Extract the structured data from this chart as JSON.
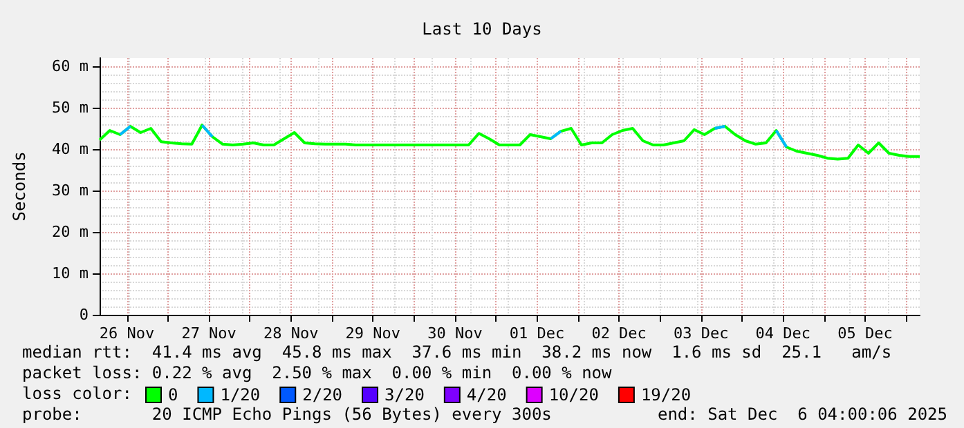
{
  "chart_data": {
    "type": "line",
    "title": "Last 10 Days",
    "ylabel": "Seconds",
    "legend_title": "loss color:",
    "x": [
      "2025-11-26T04:00",
      "2025-11-26T07:00",
      "2025-11-26T10:00",
      "2025-11-26T13:00",
      "2025-11-26T16:00",
      "2025-11-26T19:00",
      "2025-11-26T22:00",
      "2025-11-27T01:00",
      "2025-11-27T04:00",
      "2025-11-27T07:00",
      "2025-11-27T10:00",
      "2025-11-27T13:00",
      "2025-11-27T16:00",
      "2025-11-27T19:00",
      "2025-11-27T22:00",
      "2025-11-28T01:00",
      "2025-11-28T04:00",
      "2025-11-28T07:00",
      "2025-11-28T10:00",
      "2025-11-28T13:00",
      "2025-11-28T16:00",
      "2025-11-28T19:00",
      "2025-11-28T22:00",
      "2025-11-29T01:00",
      "2025-11-29T04:00",
      "2025-11-29T07:00",
      "2025-11-29T10:00",
      "2025-11-29T13:00",
      "2025-11-29T16:00",
      "2025-11-29T19:00",
      "2025-11-29T22:00",
      "2025-11-30T01:00",
      "2025-11-30T04:00",
      "2025-11-30T07:00",
      "2025-11-30T10:00",
      "2025-11-30T13:00",
      "2025-11-30T16:00",
      "2025-11-30T19:00",
      "2025-11-30T22:00",
      "2025-12-01T01:00",
      "2025-12-01T04:00",
      "2025-12-01T07:00",
      "2025-12-01T10:00",
      "2025-12-01T13:00",
      "2025-12-01T16:00",
      "2025-12-01T19:00",
      "2025-12-01T22:00",
      "2025-12-02T01:00",
      "2025-12-02T04:00",
      "2025-12-02T07:00",
      "2025-12-02T10:00",
      "2025-12-02T13:00",
      "2025-12-02T16:00",
      "2025-12-02T19:00",
      "2025-12-02T22:00",
      "2025-12-03T01:00",
      "2025-12-03T04:00",
      "2025-12-03T07:00",
      "2025-12-03T10:00",
      "2025-12-03T13:00",
      "2025-12-03T16:00",
      "2025-12-03T19:00",
      "2025-12-03T22:00",
      "2025-12-04T01:00",
      "2025-12-04T04:00",
      "2025-12-04T07:00",
      "2025-12-04T10:00",
      "2025-12-04T13:00",
      "2025-12-04T16:00",
      "2025-12-04T19:00",
      "2025-12-04T22:00",
      "2025-12-05T01:00",
      "2025-12-05T04:00",
      "2025-12-05T07:00",
      "2025-12-05T10:00",
      "2025-12-05T13:00",
      "2025-12-05T16:00",
      "2025-12-05T19:00",
      "2025-12-05T22:00",
      "2025-12-06T01:00",
      "2025-12-06T04:00"
    ],
    "series": [
      {
        "name": "0",
        "color": "#00ff00",
        "values": [
          42.2,
          44.5,
          43.5,
          45.5,
          44,
          45,
          41.8,
          41.5,
          41.3,
          41.2,
          45.8,
          43,
          41.2,
          41,
          41.2,
          41.5,
          41,
          41,
          42.5,
          44,
          41.5,
          41.3,
          41.2,
          41.2,
          41.2,
          41,
          41,
          41,
          41,
          41,
          41,
          41,
          41,
          41,
          41,
          41,
          41,
          43.8,
          42.5,
          41,
          41,
          41,
          43.5,
          43,
          42.5,
          44.3,
          45,
          41,
          41.5,
          41.5,
          43.5,
          44.5,
          45,
          42,
          41,
          41,
          41.5,
          42,
          44.7,
          43.5,
          45,
          45.5,
          43.5,
          42,
          41.2,
          41.5,
          44.5,
          40.5,
          39.5,
          39,
          38.5,
          37.8,
          37.6,
          37.8,
          41,
          39,
          41.5,
          39,
          38.5,
          38.2,
          38.2
        ]
      },
      {
        "name": "1/20",
        "color": "#00b8ff",
        "values": [
          null,
          null,
          43.5,
          45.5,
          null,
          null,
          null,
          null,
          null,
          null,
          45.8,
          43,
          null,
          null,
          null,
          null,
          null,
          null,
          null,
          null,
          null,
          null,
          null,
          null,
          null,
          null,
          null,
          null,
          null,
          null,
          null,
          null,
          null,
          null,
          null,
          null,
          null,
          null,
          null,
          null,
          null,
          null,
          null,
          null,
          42.5,
          44.3,
          null,
          null,
          null,
          null,
          null,
          null,
          null,
          null,
          null,
          null,
          null,
          null,
          null,
          null,
          45,
          45.5,
          null,
          null,
          null,
          null,
          44.5,
          40.5,
          null,
          null,
          null,
          null,
          null,
          null,
          null,
          null,
          null,
          null,
          null,
          null,
          null
        ]
      },
      {
        "name": "2/20",
        "color": "#0059ff",
        "values": [
          null,
          null,
          null,
          null,
          null,
          null,
          null,
          null,
          null,
          null,
          null,
          null,
          null,
          null,
          null,
          null,
          null,
          null,
          null,
          null,
          null,
          null,
          null,
          null,
          null,
          null,
          null,
          null,
          null,
          null,
          null,
          null,
          null,
          null,
          null,
          null,
          null,
          null,
          null,
          null,
          null,
          null,
          null,
          null,
          null,
          null,
          null,
          null,
          null,
          null,
          null,
          null,
          null,
          null,
          null,
          null,
          null,
          null,
          null,
          null,
          null,
          null,
          null,
          null,
          null,
          null,
          null,
          null,
          null,
          null,
          null,
          null,
          null,
          null,
          null,
          null,
          null,
          null,
          null,
          null,
          null
        ]
      },
      {
        "name": "3/20",
        "color": "#5500ff",
        "values": [
          null,
          null,
          null,
          null,
          null,
          null,
          null,
          null,
          null,
          null,
          null,
          null,
          null,
          null,
          null,
          null,
          null,
          null,
          null,
          null,
          null,
          null,
          null,
          null,
          null,
          null,
          null,
          null,
          null,
          null,
          null,
          null,
          null,
          null,
          null,
          null,
          null,
          null,
          null,
          null,
          null,
          null,
          null,
          null,
          null,
          null,
          null,
          null,
          null,
          null,
          null,
          null,
          null,
          null,
          null,
          null,
          null,
          null,
          null,
          null,
          null,
          null,
          null,
          null,
          null,
          null,
          null,
          null,
          null,
          null,
          null,
          null,
          null,
          null,
          null,
          null,
          null,
          null,
          null,
          null,
          null
        ]
      },
      {
        "name": "4/20",
        "color": "#7e00ff",
        "values": [
          null,
          null,
          null,
          null,
          null,
          null,
          null,
          null,
          null,
          null,
          null,
          null,
          null,
          null,
          null,
          null,
          null,
          null,
          null,
          null,
          null,
          null,
          null,
          null,
          null,
          null,
          null,
          null,
          null,
          null,
          null,
          null,
          null,
          null,
          null,
          null,
          null,
          null,
          null,
          null,
          null,
          null,
          null,
          null,
          null,
          null,
          null,
          null,
          null,
          null,
          null,
          null,
          null,
          null,
          null,
          null,
          null,
          null,
          null,
          null,
          null,
          null,
          null,
          null,
          null,
          null,
          null,
          null,
          null,
          null,
          null,
          null,
          null,
          null,
          null,
          null,
          null,
          null,
          null,
          null,
          null
        ]
      },
      {
        "name": "10/20",
        "color": "#dd00ff",
        "values": [
          null,
          null,
          null,
          null,
          null,
          null,
          null,
          null,
          null,
          null,
          null,
          null,
          null,
          null,
          null,
          null,
          null,
          null,
          null,
          null,
          null,
          null,
          null,
          null,
          null,
          null,
          null,
          null,
          null,
          null,
          null,
          null,
          null,
          null,
          null,
          null,
          null,
          null,
          null,
          null,
          null,
          null,
          null,
          null,
          null,
          null,
          null,
          null,
          null,
          null,
          null,
          null,
          null,
          null,
          null,
          null,
          null,
          null,
          null,
          null,
          null,
          null,
          null,
          null,
          null,
          null,
          null,
          null,
          null,
          null,
          null,
          null,
          null,
          null,
          null,
          null,
          null,
          null,
          null,
          null,
          null
        ]
      },
      {
        "name": "19/20",
        "color": "#ff0000",
        "values": [
          null,
          null,
          null,
          null,
          null,
          null,
          null,
          null,
          null,
          null,
          null,
          null,
          null,
          null,
          null,
          null,
          null,
          null,
          null,
          null,
          null,
          null,
          null,
          null,
          null,
          null,
          null,
          null,
          null,
          null,
          null,
          null,
          null,
          null,
          null,
          null,
          null,
          null,
          null,
          null,
          null,
          null,
          null,
          null,
          null,
          null,
          null,
          null,
          null,
          null,
          null,
          null,
          null,
          null,
          null,
          null,
          null,
          null,
          null,
          null,
          null,
          null,
          null,
          null,
          null,
          null,
          null,
          null,
          null,
          null,
          null,
          null,
          null,
          null,
          null,
          null,
          null,
          null,
          null,
          null,
          null
        ]
      }
    ],
    "xlim": [
      "2025-11-26T04:00",
      "2025-12-06T04:00"
    ],
    "xticks": [
      {
        "value": "2025-11-26T12:00",
        "label": "26 Nov"
      },
      {
        "value": "2025-11-27T00:00",
        "label": null
      },
      {
        "value": "2025-11-27T12:00",
        "label": "27 Nov"
      },
      {
        "value": "2025-11-28T00:00",
        "label": null
      },
      {
        "value": "2025-11-28T12:00",
        "label": "28 Nov"
      },
      {
        "value": "2025-11-29T00:00",
        "label": null
      },
      {
        "value": "2025-11-29T12:00",
        "label": "29 Nov"
      },
      {
        "value": "2025-11-30T00:00",
        "label": null
      },
      {
        "value": "2025-11-30T12:00",
        "label": "30 Nov"
      },
      {
        "value": "2025-12-01T00:00",
        "label": null
      },
      {
        "value": "2025-12-01T12:00",
        "label": "01 Dec"
      },
      {
        "value": "2025-12-02T00:00",
        "label": null
      },
      {
        "value": "2025-12-02T12:00",
        "label": "02 Dec"
      },
      {
        "value": "2025-12-03T00:00",
        "label": null
      },
      {
        "value": "2025-12-03T12:00",
        "label": "03 Dec"
      },
      {
        "value": "2025-12-04T00:00",
        "label": null
      },
      {
        "value": "2025-12-04T12:00",
        "label": "04 Dec"
      },
      {
        "value": "2025-12-05T00:00",
        "label": null
      },
      {
        "value": "2025-12-05T12:00",
        "label": "05 Dec"
      },
      {
        "value": "2025-12-06T00:00",
        "label": null
      }
    ],
    "ylim": [
      0,
      62
    ],
    "yticks": [
      0,
      {
        "value": 10,
        "label": "10 m"
      },
      {
        "value": 20,
        "label": "20 m"
      },
      {
        "value": 30,
        "label": "30 m"
      },
      {
        "value": 40,
        "label": "40 m"
      },
      {
        "value": 50,
        "label": "50 m"
      },
      {
        "value": 60,
        "label": "60 m"
      }
    ],
    "grid": true,
    "legend": "bottom",
    "marker": "none",
    "line_style": "solid",
    "annotations": [
      "median rtt:  41.4 ms avg  45.8 ms max  37.6 ms min  38.2 ms now  1.6 ms sd  25.1   am/s",
      "packet loss: 0.22 % avg  2.50 % max  0.00 % min  0.00 % now",
      "probe:       20 ICMP Echo Pings (56 Bytes) every 300s",
      "end: Sat Dec  6 04:00:06 2025"
    ]
  }
}
